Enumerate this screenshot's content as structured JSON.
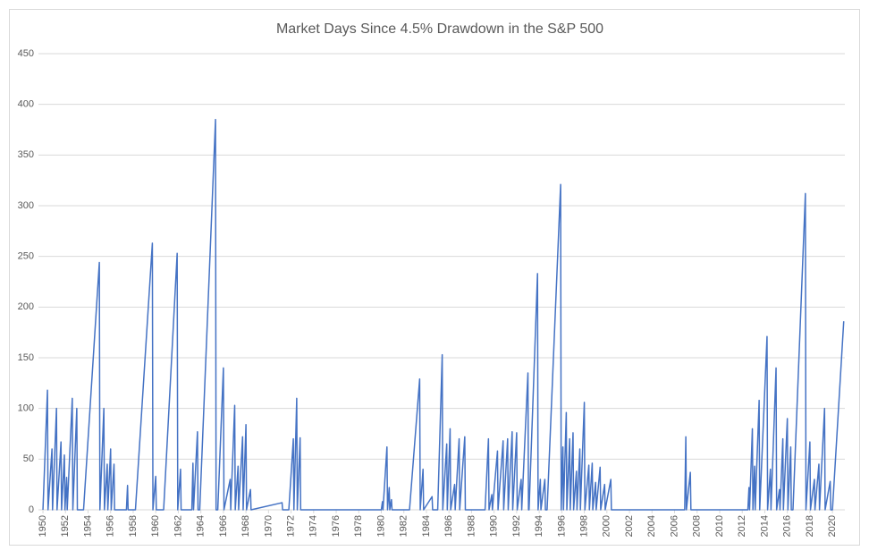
{
  "chart_data": {
    "type": "line",
    "title": "Market Days Since 4.5% Drawdown in the S&P 500",
    "x": [
      1950.0,
      1950.4,
      1950.45,
      1950.8,
      1950.85,
      1951.2,
      1951.25,
      1951.6,
      1951.65,
      1951.9,
      1951.95,
      1952.1,
      1952.15,
      1952.6,
      1952.65,
      1953.0,
      1953.05,
      1953.6,
      1955.0,
      1955.05,
      1955.4,
      1955.45,
      1955.7,
      1955.75,
      1956.0,
      1956.05,
      1956.3,
      1956.35,
      1957.4,
      1957.5,
      1957.55,
      1958.2,
      1959.7,
      1959.75,
      1960.0,
      1960.05,
      1960.7,
      1961.9,
      1961.95,
      1962.2,
      1962.25,
      1963.2,
      1963.3,
      1963.35,
      1963.7,
      1963.75,
      1963.9,
      1965.3,
      1965.35,
      1965.5,
      1966.0,
      1966.05,
      1966.6,
      1966.65,
      1967.0,
      1967.05,
      1967.3,
      1967.35,
      1967.7,
      1967.75,
      1968.0,
      1968.05,
      1968.4,
      1968.45,
      1971.2,
      1971.25,
      1971.8,
      1972.2,
      1972.25,
      1972.5,
      1972.55,
      1972.8,
      1972.85,
      1980.0,
      1980.1,
      1980.15,
      1980.5,
      1980.55,
      1980.7,
      1980.75,
      1980.9,
      1980.95,
      1982.5,
      1983.4,
      1983.45,
      1983.7,
      1983.75,
      1984.5,
      1984.55,
      1985.0,
      1985.4,
      1985.45,
      1985.8,
      1985.85,
      1986.1,
      1986.15,
      1986.5,
      1986.55,
      1986.9,
      1986.95,
      1987.4,
      1987.45,
      1989.2,
      1989.5,
      1989.55,
      1989.8,
      1989.85,
      1990.3,
      1990.35,
      1990.8,
      1990.85,
      1991.2,
      1991.25,
      1991.6,
      1991.65,
      1992.0,
      1992.05,
      1992.4,
      1992.45,
      1993.0,
      1993.05,
      1993.1,
      1993.85,
      1993.9,
      1994.1,
      1994.15,
      1994.5,
      1994.55,
      1994.7,
      1995.9,
      1995.95,
      1996.1,
      1996.15,
      1996.4,
      1996.45,
      1996.7,
      1996.75,
      1997.0,
      1997.05,
      1997.3,
      1997.35,
      1997.6,
      1997.65,
      1998.0,
      1998.05,
      1998.4,
      1998.45,
      1998.7,
      1998.75,
      1999.0,
      1999.05,
      1999.4,
      1999.45,
      1999.8,
      1999.85,
      2000.35,
      2000.4,
      2006.9,
      2007.0,
      2007.05,
      2007.4,
      2007.45,
      2012.5,
      2012.6,
      2012.65,
      2012.9,
      2012.95,
      2013.1,
      2013.15,
      2013.5,
      2013.55,
      2014.2,
      2014.25,
      2014.5,
      2014.55,
      2015.0,
      2015.05,
      2015.3,
      2015.35,
      2015.6,
      2015.65,
      2016.0,
      2016.05,
      2016.3,
      2016.35,
      2016.5,
      2017.6,
      2017.65,
      2018.0,
      2018.05,
      2018.4,
      2018.45,
      2018.8,
      2018.85,
      2019.3,
      2019.35,
      2019.8,
      2019.85,
      2020.0,
      2021.0
    ],
    "series": [
      {
        "color": "#4472c4",
        "values": [
          0,
          118,
          0,
          60,
          0,
          100,
          0,
          67,
          0,
          54,
          0,
          32,
          0,
          110,
          0,
          100,
          0,
          0,
          244,
          0,
          100,
          0,
          45,
          0,
          60,
          0,
          45,
          0,
          0,
          24,
          0,
          0,
          263,
          0,
          33,
          0,
          0,
          253,
          0,
          40,
          0,
          0,
          46,
          0,
          77,
          0,
          0,
          385,
          0,
          0,
          140,
          0,
          30,
          0,
          103,
          0,
          43,
          0,
          72,
          0,
          84,
          0,
          20,
          0,
          7,
          0,
          0,
          70,
          0,
          110,
          0,
          71,
          0,
          0,
          8,
          0,
          62,
          0,
          22,
          0,
          10,
          0,
          0,
          129,
          0,
          40,
          0,
          13,
          0,
          0,
          153,
          0,
          65,
          0,
          80,
          0,
          25,
          0,
          70,
          0,
          72,
          0,
          0,
          70,
          0,
          15,
          0,
          58,
          0,
          68,
          0,
          70,
          0,
          77,
          0,
          76,
          0,
          30,
          0,
          135,
          0,
          0,
          233,
          0,
          30,
          0,
          30,
          0,
          0,
          321,
          0,
          62,
          0,
          96,
          0,
          70,
          0,
          76,
          0,
          38,
          0,
          60,
          0,
          106,
          0,
          44,
          0,
          46,
          0,
          27,
          0,
          42,
          0,
          25,
          0,
          30,
          0,
          0,
          72,
          0,
          37,
          0,
          0,
          22,
          0,
          80,
          0,
          43,
          0,
          108,
          0,
          171,
          0,
          40,
          0,
          140,
          0,
          20,
          0,
          70,
          0,
          90,
          0,
          62,
          0,
          0,
          312,
          0,
          67,
          0,
          30,
          0,
          45,
          0,
          100,
          0,
          28,
          0,
          0,
          186
        ]
      }
    ],
    "xlim": [
      1949.6,
      2021.1
    ],
    "xticks": [
      1950,
      1952,
      1954,
      1956,
      1958,
      1960,
      1962,
      1964,
      1966,
      1968,
      1970,
      1972,
      1974,
      1976,
      1978,
      1980,
      1982,
      1984,
      1986,
      1988,
      1990,
      1992,
      1994,
      1996,
      1998,
      2000,
      2002,
      2004,
      2006,
      2008,
      2010,
      2012,
      2014,
      2016,
      2018,
      2020
    ],
    "ylim": [
      0,
      450
    ],
    "yticks": [
      0,
      50,
      100,
      150,
      200,
      250,
      300,
      350,
      400,
      450
    ],
    "grid": true
  }
}
